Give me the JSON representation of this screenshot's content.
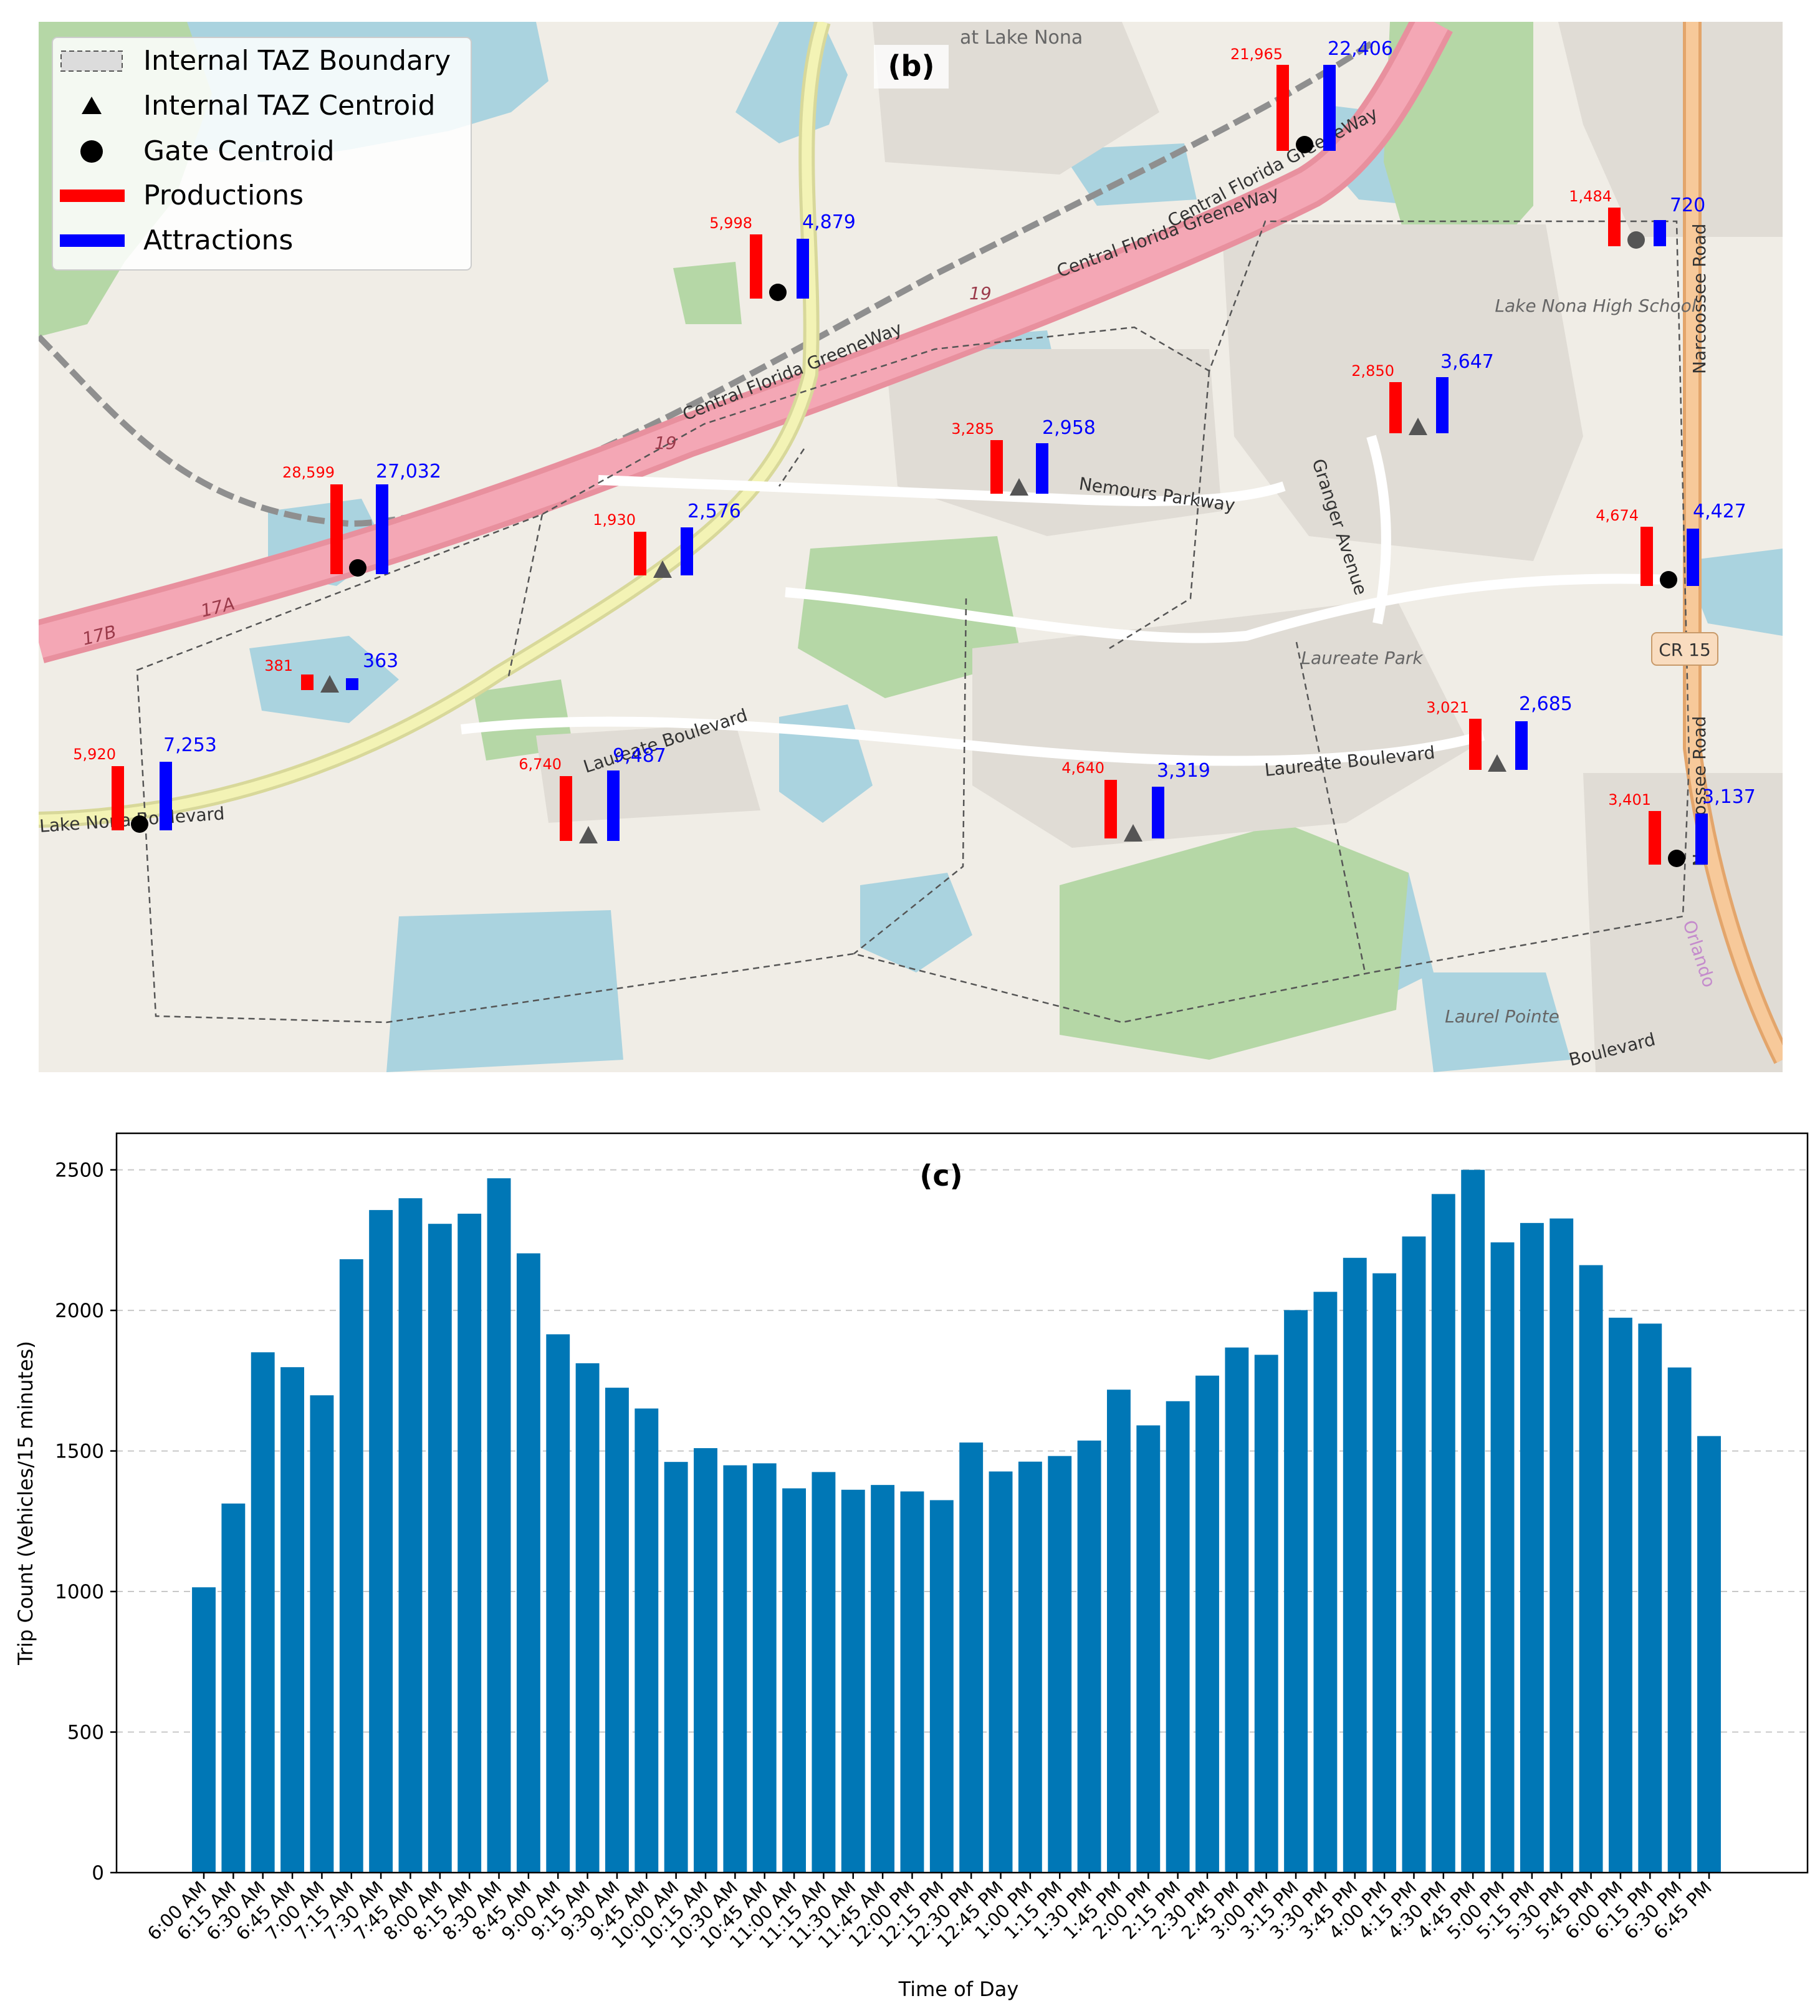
{
  "map_panel": {
    "panel_label": "(b)",
    "legend": {
      "boundary": "Internal TAZ Boundary",
      "taz_centroid": "Internal TAZ Centroid",
      "gate_centroid": "Gate Centroid",
      "productions": "Productions",
      "attractions": "Attractions"
    },
    "place_labels": {
      "greeneway_1": "Central Florida GreeneWay",
      "greeneway_2": "Central Florida GreeneWay",
      "greeneway_3": "Central Florida GreeneWay",
      "nemours": "Nemours Parkway",
      "granger": "Granger Avenue",
      "laureate_blvd": "Laureate Boulevard",
      "laureate_park": "Laureate Park",
      "lake_nona_hs": "Lake Nona High School",
      "narcoossee_1": "Narcoossee Road",
      "narcoossee_2": "Narcoossee Road",
      "cr15": "CR 15",
      "laurel_pointe": "Laurel Pointe",
      "at_lake_nona": "at Lake Nona",
      "lake_nona_blvd": "Lake Nona Boulevard",
      "laureate_blvd_west": "Laureate Boulevard",
      "orlando": "Orlando",
      "boulevard_se": "Boulevard",
      "route_17a": "17A",
      "route_17b": "17B",
      "route_19a": "19",
      "route_19b": "19"
    },
    "colors": {
      "productions": "#ff0000",
      "attractions": "#0000ff",
      "road": "#f08a9a",
      "water": "#aad3df",
      "park": "#b5d7a6"
    },
    "centroids": [
      {
        "id": "west-gate",
        "type": "gate",
        "productions": 5920,
        "attractions": 7253,
        "productions_label": "5,920",
        "attractions_label": "7,253"
      },
      {
        "id": "greeneway-west-gate",
        "type": "gate",
        "productions": 28599,
        "attractions": 27032,
        "productions_label": "28,599",
        "attractions_label": "27,032"
      },
      {
        "id": "taz-southwest",
        "type": "taz",
        "productions": 381,
        "attractions": 363,
        "productions_label": "381",
        "attractions_label": "363"
      },
      {
        "id": "north-gate",
        "type": "gate",
        "productions": 5998,
        "attractions": 4879,
        "productions_label": "5,998",
        "attractions_label": "4,879"
      },
      {
        "id": "taz-campus-north",
        "type": "taz",
        "productions": 1930,
        "attractions": 2576,
        "productions_label": "1,930",
        "attractions_label": "2,576"
      },
      {
        "id": "taz-campus-south",
        "type": "taz",
        "productions": 6740,
        "attractions": 9487,
        "productions_label": "6,740",
        "attractions_label": "9,487"
      },
      {
        "id": "taz-nemours",
        "type": "taz",
        "productions": 3285,
        "attractions": 2958,
        "productions_label": "3,285",
        "attractions_label": "2,958"
      },
      {
        "id": "greeneway-east-gate",
        "type": "gate",
        "productions": 21965,
        "attractions": 22406,
        "productions_label": "21,965",
        "attractions_label": "22,406"
      },
      {
        "id": "taz-northeast",
        "type": "taz",
        "productions": 2850,
        "attractions": 3647,
        "productions_label": "2,850",
        "attractions_label": "3,647"
      },
      {
        "id": "high-school-gate",
        "type": "gate",
        "productions": 1484,
        "attractions": 720,
        "productions_label": "1,484",
        "attractions_label": "720"
      },
      {
        "id": "cr15-gate",
        "type": "gate",
        "productions": 4674,
        "attractions": 4427,
        "productions_label": "4,674",
        "attractions_label": "4,427"
      },
      {
        "id": "taz-laureate-park",
        "type": "taz",
        "productions": 3021,
        "attractions": 2685,
        "productions_label": "3,021",
        "attractions_label": "2,685"
      },
      {
        "id": "taz-laureate-blvd",
        "type": "taz",
        "productions": 4640,
        "attractions": 3319,
        "productions_label": "4,640",
        "attractions_label": "3,319"
      },
      {
        "id": "south-gate",
        "type": "gate",
        "productions": 3401,
        "attractions": 3137,
        "productions_label": "3,401",
        "attractions_label": "3,137"
      }
    ]
  },
  "chart_data": {
    "type": "bar",
    "panel_label": "(c)",
    "title": "(c)",
    "xlabel": "Time of Day",
    "ylabel": "Trip Count (Vehicles/15 minutes)",
    "ylim": [
      0,
      2630
    ],
    "yticks": [
      0,
      500,
      1000,
      1500,
      2000,
      2500
    ],
    "ytick_labels": [
      "0",
      "500",
      "1000",
      "1500",
      "2000",
      "2500"
    ],
    "grid": "horizontal dashed",
    "bar_color": "#0077b6",
    "categories": [
      "6:00 AM",
      "6:15 AM",
      "6:30 AM",
      "6:45 AM",
      "7:00 AM",
      "7:15 AM",
      "7:30 AM",
      "7:45 AM",
      "8:00 AM",
      "8:15 AM",
      "8:30 AM",
      "8:45 AM",
      "9:00 AM",
      "9:15 AM",
      "9:30 AM",
      "9:45 AM",
      "10:00 AM",
      "10:15 AM",
      "10:30 AM",
      "10:45 AM",
      "11:00 AM",
      "11:15 AM",
      "11:30 AM",
      "11:45 AM",
      "12:00 PM",
      "12:15 PM",
      "12:30 PM",
      "12:45 PM",
      "1:00 PM",
      "1:15 PM",
      "1:30 PM",
      "1:45 PM",
      "2:00 PM",
      "2:15 PM",
      "2:30 PM",
      "2:45 PM",
      "3:00 PM",
      "3:15 PM",
      "3:30 PM",
      "3:45 PM",
      "4:00 PM",
      "4:15 PM",
      "4:30 PM",
      "4:45 PM",
      "5:00 PM",
      "5:15 PM",
      "5:30 PM",
      "5:45 PM",
      "6:00 PM",
      "6:15 PM",
      "6:30 PM",
      "6:45 PM"
    ],
    "values": [
      1015,
      1313,
      1851,
      1798,
      1698,
      2182,
      2357,
      2399,
      2308,
      2344,
      2470,
      2203,
      1915,
      1812,
      1725,
      1651,
      1461,
      1510,
      1449,
      1456,
      1367,
      1425,
      1362,
      1379,
      1356,
      1325,
      1530,
      1427,
      1462,
      1482,
      1537,
      1718,
      1591,
      1677,
      1768,
      1868,
      1842,
      2001,
      2066,
      2187,
      2132,
      2263,
      2414,
      2500,
      2242,
      2311,
      2327,
      2161,
      1974,
      1953,
      1797,
      1553
    ]
  }
}
